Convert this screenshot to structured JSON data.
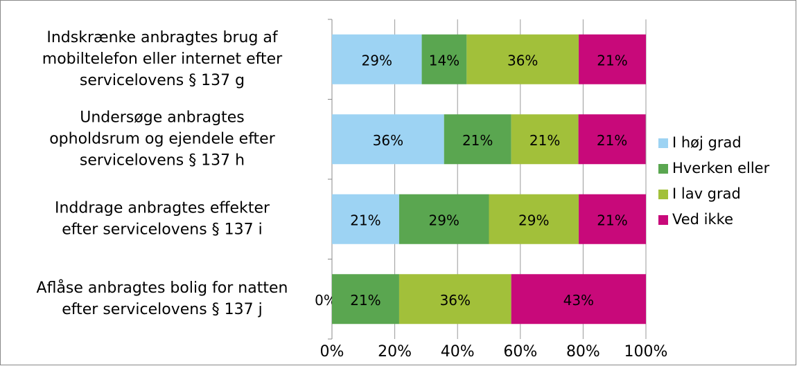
{
  "chart_data": {
    "type": "stacked_barh",
    "categories": [
      [
        "Indskrænke anbragtes brug af",
        "mobiltelefon eller internet efter",
        "servicelovens § 137 g"
      ],
      [
        "Undersøge anbragtes",
        "opholdsrum og ejendele efter",
        "servicelovens § 137 h"
      ],
      [
        "Inddrage anbragtes effekter",
        "efter servicelovens § 137 i"
      ],
      [
        "Aflåse anbragtes bolig for natten",
        "efter servicelovens § 137 j"
      ]
    ],
    "series": [
      {
        "name": "I høj grad",
        "color": "#9dd3f3",
        "values": [
          28.6,
          35.7,
          21.4,
          0
        ],
        "value_labels": [
          "29%",
          "36%",
          "21%",
          "0%"
        ]
      },
      {
        "name": "Hverken eller",
        "color": "#5aa650",
        "values": [
          14.3,
          21.4,
          28.6,
          21.4
        ],
        "value_labels": [
          "14%",
          "21%",
          "29%",
          "21%"
        ]
      },
      {
        "name": "I lav grad",
        "color": "#a2c03a",
        "values": [
          35.7,
          21.4,
          28.6,
          35.7
        ],
        "value_labels": [
          "36%",
          "21%",
          "29%",
          "36%"
        ]
      },
      {
        "name": "Ved ikke",
        "color": "#c8097a",
        "values": [
          21.4,
          21.4,
          21.4,
          42.9
        ],
        "value_labels": [
          "21%",
          "21%",
          "21%",
          "43%"
        ]
      }
    ],
    "xlim": [
      0,
      100
    ],
    "xticks": [
      {
        "value": 0,
        "label": "0%"
      },
      {
        "value": 20,
        "label": "20%"
      },
      {
        "value": 40,
        "label": "40%"
      },
      {
        "value": 60,
        "label": "60%"
      },
      {
        "value": 80,
        "label": "80%"
      },
      {
        "value": 100,
        "label": "100%"
      }
    ],
    "grid": true,
    "legend": "right"
  }
}
